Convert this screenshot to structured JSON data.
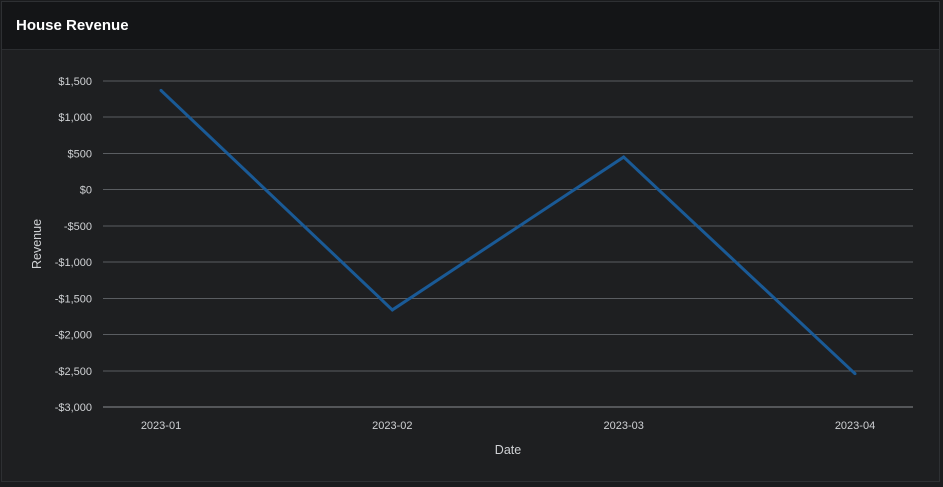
{
  "panel": {
    "title": "House Revenue"
  },
  "colors": {
    "background": "#1e1f21",
    "header": "#141517",
    "grid": "#5a5d61",
    "text": "#cfd1d4",
    "series": "#1a5a96"
  },
  "chart_data": {
    "type": "line",
    "title": "House Revenue",
    "xlabel": "Date",
    "ylabel": "Revenue",
    "x": [
      "2023-01",
      "2023-02",
      "2023-03",
      "2023-04"
    ],
    "series": [
      {
        "values": [
          1370,
          -1660,
          450,
          -2540
        ]
      }
    ],
    "ylim": [
      -3000,
      1500
    ],
    "yticks": [
      1500,
      1000,
      500,
      0,
      -500,
      -1000,
      -1500,
      -2000,
      -2500,
      -3000
    ],
    "ytick_labels": [
      "$1,500",
      "$1,000",
      "$500",
      "$0",
      "-$500",
      "-$1,000",
      "-$1,500",
      "-$2,000",
      "-$2,500",
      "-$3,000"
    ],
    "grid": true,
    "legend": "none"
  }
}
